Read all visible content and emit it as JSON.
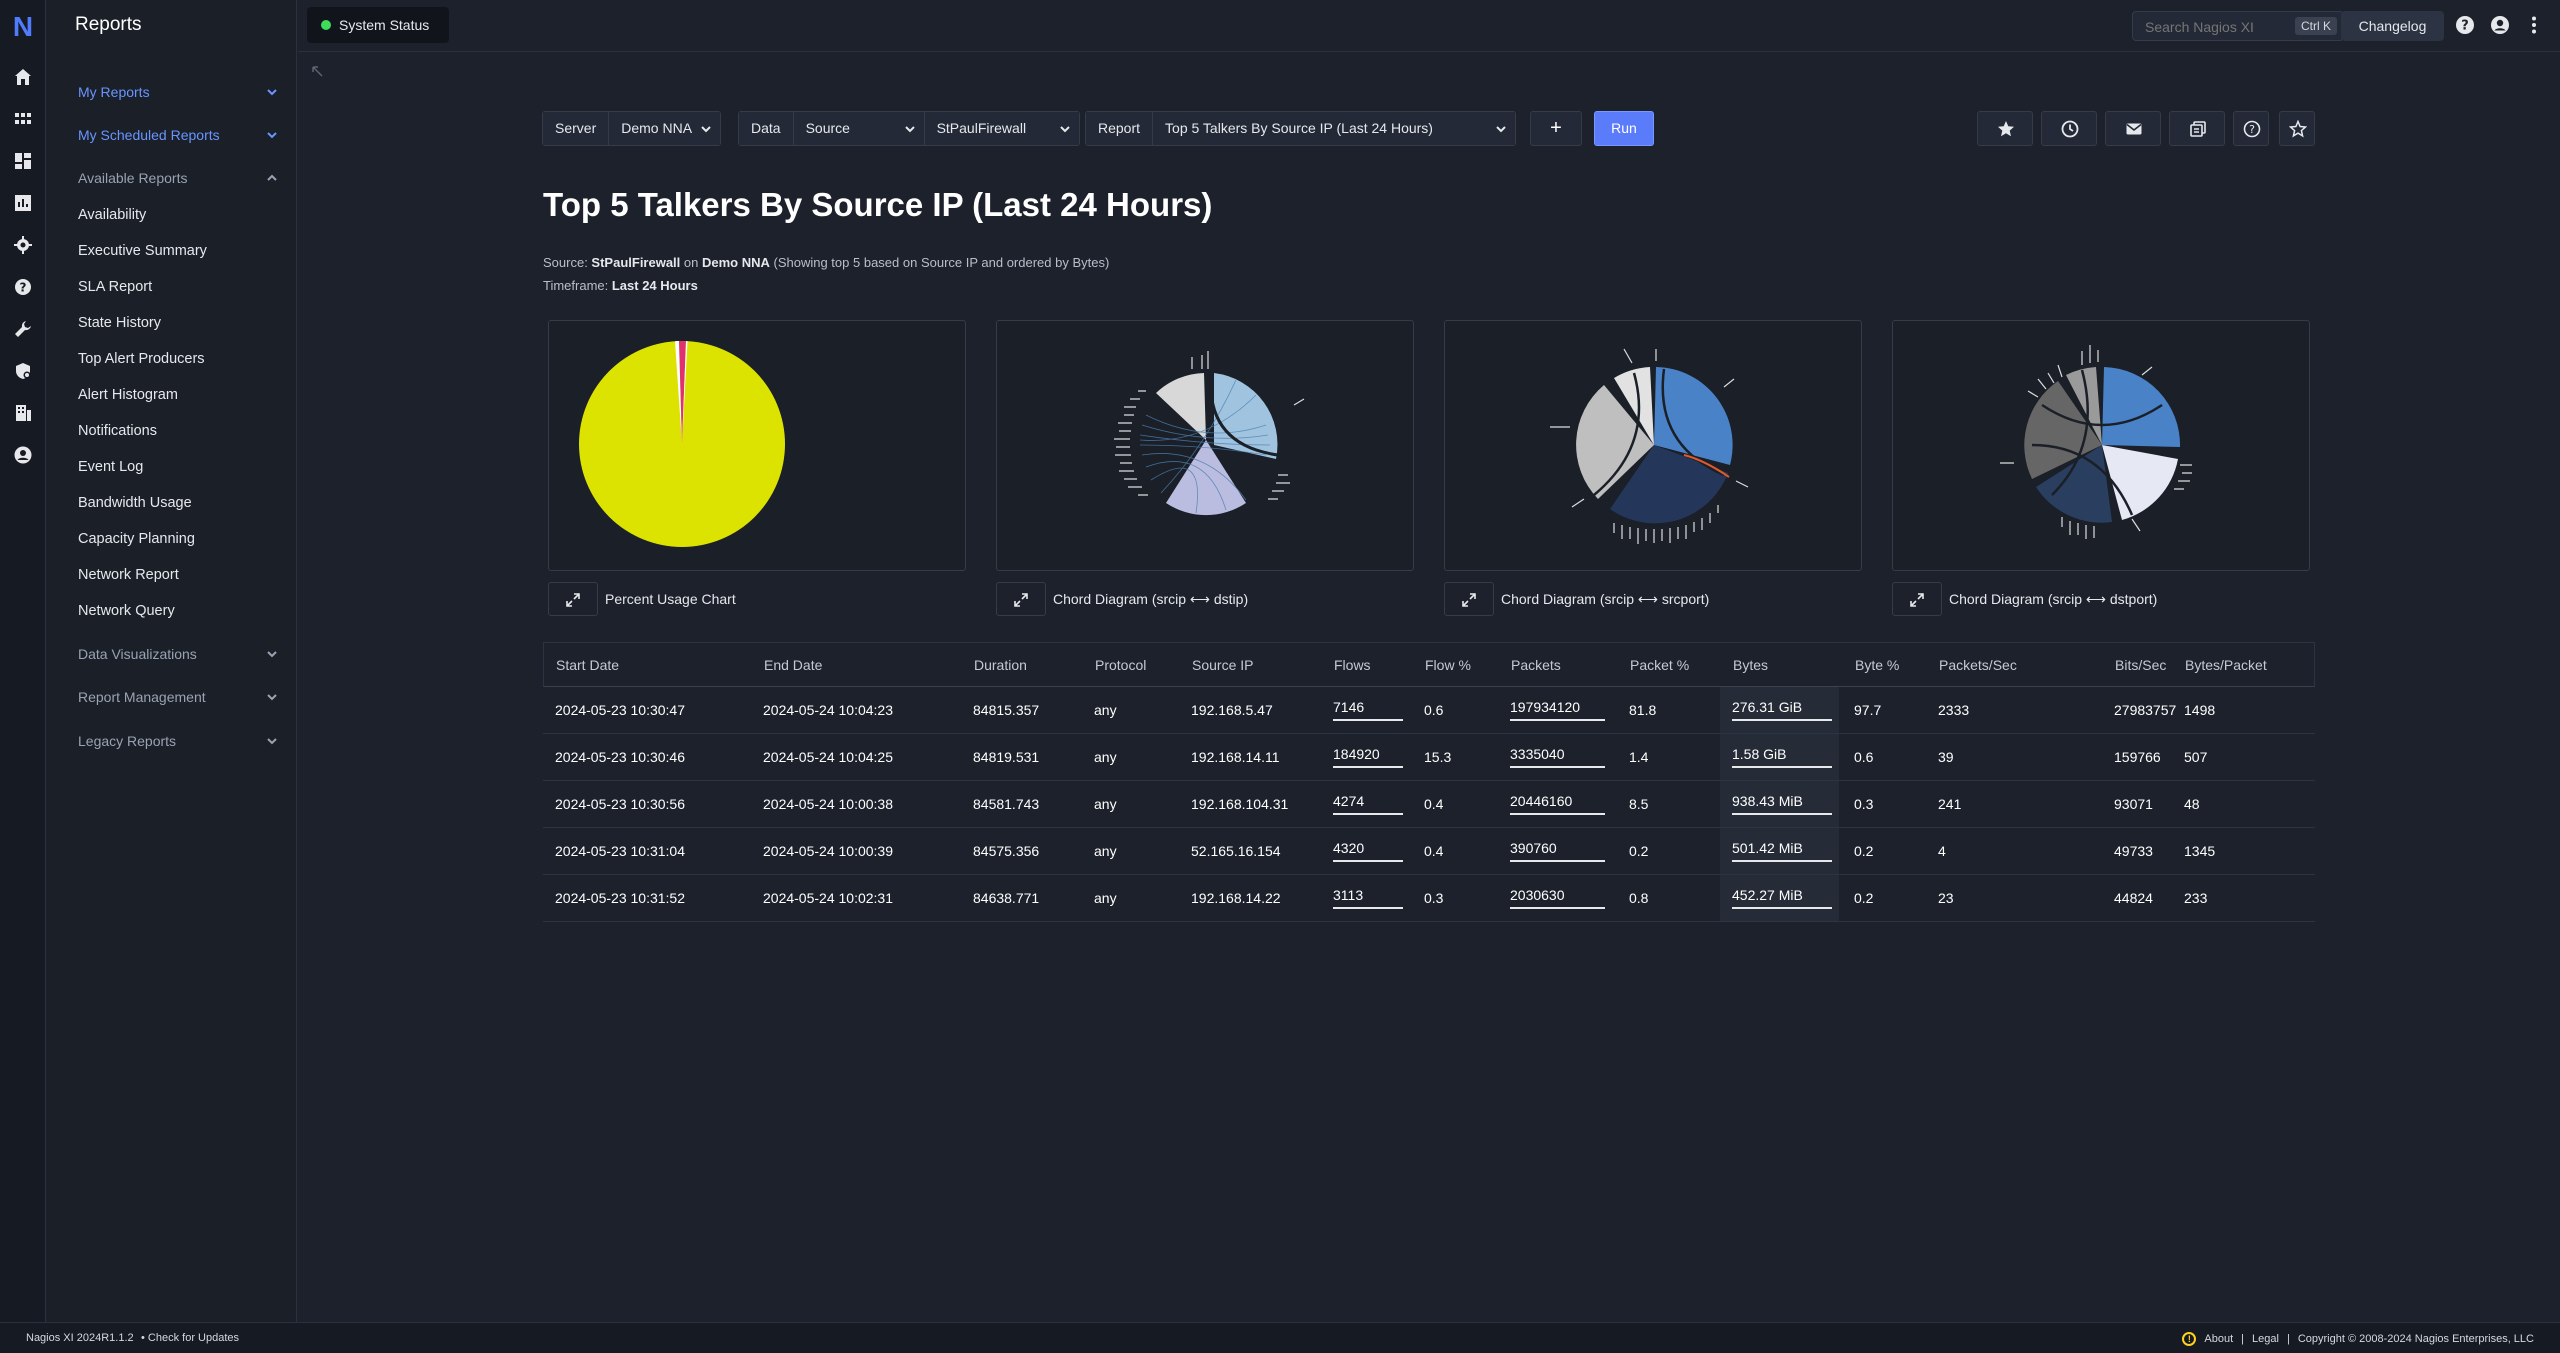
{
  "app": {
    "logo": "N",
    "section_title": "Reports"
  },
  "topbar": {
    "system_status": "System Status",
    "status_color": "#3ddc5a",
    "search_placeholder": "Search Nagios XI",
    "search_shortcut": "Ctrl K",
    "changelog": "Changelog"
  },
  "rail_icons": [
    "home-icon",
    "apps-grid-icon",
    "dashboard-icon",
    "reports-chart-icon",
    "gear-icon",
    "help-icon",
    "wrench-icon",
    "shield-gear-icon",
    "building-icon",
    "user-circle-icon"
  ],
  "nav": {
    "my_reports": "My Reports",
    "my_scheduled_reports": "My Scheduled Reports",
    "available_reports": "Available Reports",
    "items": [
      "Availability",
      "Executive Summary",
      "SLA Report",
      "State History",
      "Top Alert Producers",
      "Alert Histogram",
      "Notifications",
      "Event Log",
      "Bandwidth Usage",
      "Capacity Planning",
      "Network Report",
      "Network Query"
    ],
    "data_visualizations": "Data Visualizations",
    "report_management": "Report Management",
    "legacy_reports": "Legacy Reports"
  },
  "toolbar": {
    "server_label": "Server",
    "server_value": "Demo NNA",
    "data_label": "Data",
    "data_type_value": "Source",
    "data_source_value": "StPaulFirewall",
    "report_label": "Report",
    "report_value": "Top 5 Talkers By Source IP (Last 24 Hours)",
    "plus": "+",
    "run": "Run",
    "accent": "#5b7cfa"
  },
  "report": {
    "title": "Top 5 Talkers By Source IP (Last 24 Hours)",
    "source_prefix": "Source: ",
    "source_name": "StPaulFirewall",
    "source_on": " on ",
    "server_name": "Demo NNA",
    "source_suffix": " (Showing top 5 based on Source IP and ordered by Bytes)",
    "timeframe_prefix": "Timeframe: ",
    "timeframe": "Last 24 Hours"
  },
  "charts": [
    {
      "caption": "Percent Usage Chart"
    },
    {
      "caption": "Chord Diagram (srcip ⟷ dstip)"
    },
    {
      "caption": "Chord Diagram (srcip ⟷ srcport)"
    },
    {
      "caption": "Chord Diagram (srcip ⟷ dstport)"
    }
  ],
  "pie_colors": {
    "main": "#dce300",
    "minor": "#e0306e"
  },
  "table": {
    "headers": [
      "Start Date",
      "End Date",
      "Duration",
      "Protocol",
      "Source IP",
      "Flows",
      "Flow %",
      "Packets",
      "Packet %",
      "Bytes",
      "Byte %",
      "Packets/Sec",
      "Bits/Sec",
      "Bytes/Packet"
    ],
    "rows": [
      [
        "2024-05-23 10:30:47",
        "2024-05-24 10:04:23",
        "84815.357",
        "any",
        "192.168.5.47",
        "7146",
        "0.6",
        "197934120",
        "81.8",
        "276.31 GiB",
        "97.7",
        "2333",
        "27983757",
        "1498"
      ],
      [
        "2024-05-23 10:30:46",
        "2024-05-24 10:04:25",
        "84819.531",
        "any",
        "192.168.14.11",
        "184920",
        "15.3",
        "3335040",
        "1.4",
        "1.58 GiB",
        "0.6",
        "39",
        "159766",
        "507"
      ],
      [
        "2024-05-23 10:30:56",
        "2024-05-24 10:00:38",
        "84581.743",
        "any",
        "192.168.104.31",
        "4274",
        "0.4",
        "20446160",
        "8.5",
        "938.43 MiB",
        "0.3",
        "241",
        "93071",
        "48"
      ],
      [
        "2024-05-23 10:31:04",
        "2024-05-24 10:00:39",
        "84575.356",
        "any",
        "52.165.16.154",
        "4320",
        "0.4",
        "390760",
        "0.2",
        "501.42 MiB",
        "0.2",
        "4",
        "49733",
        "1345"
      ],
      [
        "2024-05-23 10:31:52",
        "2024-05-24 10:02:31",
        "84638.771",
        "any",
        "192.168.14.22",
        "3113",
        "0.3",
        "2030630",
        "0.8",
        "452.27 MiB",
        "0.2",
        "23",
        "44824",
        "233"
      ]
    ]
  },
  "footer": {
    "version": "Nagios XI 2024R1.1.2",
    "check_updates": "• Check for Updates",
    "about": "About",
    "sep": "|",
    "legal": "Legal",
    "copyright": "Copyright © 2008-2024 Nagios Enterprises, LLC"
  }
}
